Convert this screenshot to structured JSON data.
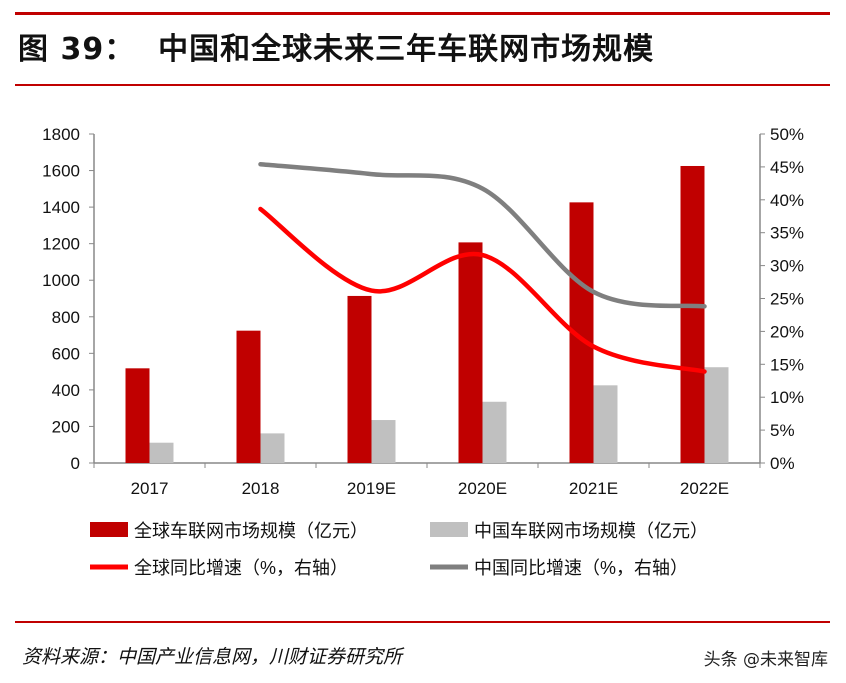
{
  "header": {
    "title": "图 39：  中国和全球未来三年车联网市场规模"
  },
  "footer": {
    "source": "资料来源：中国产业信息网，川财证券研究所",
    "watermark": "头条 @未来智库"
  },
  "colors": {
    "global_bar": "#c00000",
    "china_bar": "#c0c0c0",
    "global_line": "#ff0000",
    "china_line": "#7f7f7f",
    "rule": "#c00000"
  },
  "chart_data": {
    "type": "bar",
    "categories": [
      "2017",
      "2018",
      "2019E",
      "2020E",
      "2021E",
      "2022E"
    ],
    "y_left": {
      "ylim": [
        0,
        1800
      ],
      "ticks": [
        "0",
        "200",
        "400",
        "600",
        "800",
        "1000",
        "1200",
        "1400",
        "1600",
        "1800"
      ]
    },
    "y_right": {
      "ylim": [
        0,
        50
      ],
      "ticks": [
        "0%",
        "5%",
        "10%",
        "15%",
        "20%",
        "25%",
        "30%",
        "35%",
        "40%",
        "45%",
        "50%"
      ]
    },
    "series": [
      {
        "name": "全球车联网市场规模（亿元）",
        "type": "bar",
        "axis": "left",
        "values": [
          518,
          724,
          914,
          1207,
          1426,
          1625
        ]
      },
      {
        "name": "中国车联网市场规模（亿元）",
        "type": "bar",
        "axis": "left",
        "values": [
          111,
          162,
          235,
          335,
          425,
          524
        ]
      },
      {
        "name": "全球同比增速（%，右轴）",
        "type": "line",
        "axis": "right",
        "values": [
          null,
          38.6,
          26.2,
          31.6,
          17.7,
          13.9
        ]
      },
      {
        "name": "中国同比增速（%，右轴）",
        "type": "line",
        "axis": "right",
        "values": [
          null,
          45.4,
          43.9,
          41.7,
          26.0,
          23.8
        ]
      }
    ],
    "grid": false,
    "legend": "bottom"
  }
}
